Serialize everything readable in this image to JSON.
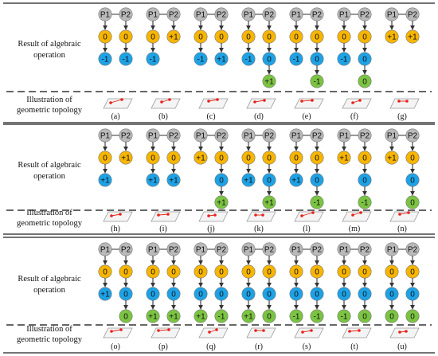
{
  "labels": {
    "result_line1": "Result of algebraic",
    "result_line2": "operation",
    "illus_line1": "Illustration of",
    "illus_line2": "geometric topology"
  },
  "colors": {
    "gray": "#b9b9b9",
    "yellow": "#f7b500",
    "blue": "#1ea2e6",
    "green": "#7bc442",
    "point": "#e8221a"
  },
  "point_labels": [
    "P1",
    "P2"
  ],
  "cases": [
    {
      "tag": "(a)",
      "left": [
        "0",
        "-1"
      ],
      "right": [
        "0",
        "-1"
      ]
    },
    {
      "tag": "(b)",
      "left": [
        "0",
        "-1"
      ],
      "right": [
        "+1"
      ]
    },
    {
      "tag": "(c)",
      "left": [
        "0",
        "-1"
      ],
      "right": [
        "0",
        "+1"
      ]
    },
    {
      "tag": "(d)",
      "left": [
        "0",
        "-1"
      ],
      "right": [
        "0",
        "0",
        "+1"
      ]
    },
    {
      "tag": "(e)",
      "left": [
        "0",
        "-1"
      ],
      "right": [
        "0",
        "0",
        "-1"
      ]
    },
    {
      "tag": "(f)",
      "left": [
        "0",
        "-1"
      ],
      "right": [
        "0",
        "0",
        "0"
      ]
    },
    {
      "tag": "(g)",
      "left": [
        "+1"
      ],
      "right": [
        "+1"
      ]
    },
    {
      "tag": "(h)",
      "left": [
        "0",
        "+1"
      ],
      "right": [
        "+1"
      ]
    },
    {
      "tag": "(i)",
      "left": [
        "0",
        "+1"
      ],
      "right": [
        "0",
        "+1"
      ]
    },
    {
      "tag": "(j)",
      "left": [
        "+1"
      ],
      "right": [
        "0",
        "0",
        "+1"
      ]
    },
    {
      "tag": "(k)",
      "left": [
        "0",
        "+1"
      ],
      "right": [
        "0",
        "0",
        "+1"
      ]
    },
    {
      "tag": "(l)",
      "left": [
        "0",
        "+1"
      ],
      "right": [
        "0",
        "0",
        "-1"
      ]
    },
    {
      "tag": "(m)",
      "left": [
        "+1"
      ],
      "right": [
        "0",
        "0",
        "-1"
      ]
    },
    {
      "tag": "(n)",
      "left": [
        "+1"
      ],
      "right": [
        "0",
        "0",
        "0"
      ]
    },
    {
      "tag": "(o)",
      "left": [
        "0",
        "+1"
      ],
      "right": [
        "0",
        "0",
        "0"
      ]
    },
    {
      "tag": "(p)",
      "left": [
        "0",
        "0",
        "+1"
      ],
      "right": [
        "0",
        "0",
        "+1"
      ]
    },
    {
      "tag": "(q)",
      "left": [
        "0",
        "0",
        "+1"
      ],
      "right": [
        "0",
        "0",
        "-1"
      ]
    },
    {
      "tag": "(r)",
      "left": [
        "0",
        "0",
        "+1"
      ],
      "right": [
        "0",
        "0",
        "0"
      ]
    },
    {
      "tag": "(s)",
      "left": [
        "0",
        "0",
        "-1"
      ],
      "right": [
        "0",
        "0",
        "-1"
      ]
    },
    {
      "tag": "(t)",
      "left": [
        "0",
        "0",
        "-1"
      ],
      "right": [
        "0",
        "0",
        "0"
      ]
    },
    {
      "tag": "(u)",
      "left": [
        "0",
        "0",
        "0"
      ],
      "right": [
        "0",
        "0",
        "0"
      ]
    }
  ]
}
